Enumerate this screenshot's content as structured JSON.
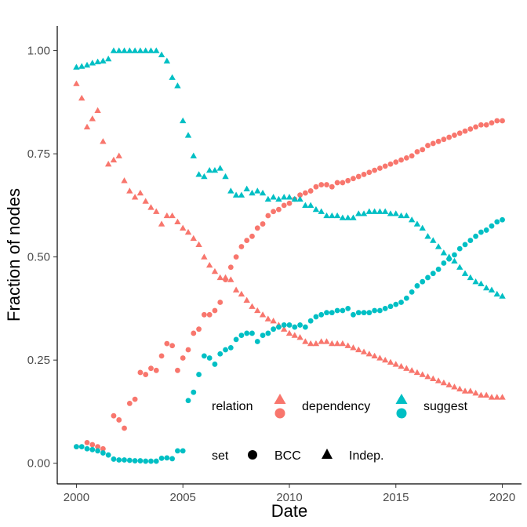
{
  "chart_data": {
    "type": "scatter",
    "xlabel": "Date",
    "ylabel": "Fraction of nodes",
    "xlim": [
      1999.1,
      2020.9
    ],
    "ylim": [
      -0.05,
      1.06
    ],
    "xticks": [
      2000,
      2005,
      2010,
      2015,
      2020
    ],
    "xtick_labels": [
      "2000",
      "2005",
      "2010",
      "2015",
      "2020"
    ],
    "yticks": [
      0.0,
      0.25,
      0.5,
      0.75,
      1.0
    ],
    "ytick_labels": [
      "0.00",
      "0.25",
      "0.50",
      "0.75",
      "1.00"
    ],
    "grid": false,
    "legend_placement": "bottom-right inside plot",
    "legend": {
      "relation_title": "relation",
      "relation_items": [
        "dependency",
        "suggest"
      ],
      "set_title": "set",
      "set_items": [
        "BCC",
        "Indep."
      ]
    },
    "colors": {
      "dependency": "#F8766D",
      "suggest": "#00BFC4",
      "axis": "#000000",
      "tick_text": "#4d4d4d"
    },
    "series": [
      {
        "name": "dependency / BCC",
        "relation": "dependency",
        "set": "BCC",
        "shape": "circle",
        "x": [
          2000.0,
          2000.5,
          2000.75,
          2001.0,
          2001.25,
          2001.75,
          2002.0,
          2002.25,
          2002.5,
          2002.75,
          2003.0,
          2003.25,
          2003.5,
          2003.75,
          2004.0,
          2004.25,
          2004.5,
          2004.75,
          2005.0,
          2005.25,
          2005.5,
          2005.75,
          2006.0,
          2006.25,
          2006.5,
          2006.75,
          2007.0,
          2007.25,
          2007.5,
          2007.75,
          2008.0,
          2008.25,
          2008.5,
          2008.75,
          2009.0,
          2009.25,
          2009.5,
          2009.75,
          2010.0,
          2010.25,
          2010.5,
          2010.75,
          2011.0,
          2011.25,
          2011.5,
          2011.75,
          2012.0,
          2012.25,
          2012.5,
          2012.75,
          2013.0,
          2013.25,
          2013.5,
          2013.75,
          2014.0,
          2014.25,
          2014.5,
          2014.75,
          2015.0,
          2015.25,
          2015.5,
          2015.75,
          2016.0,
          2016.25,
          2016.5,
          2016.75,
          2017.0,
          2017.25,
          2017.5,
          2017.75,
          2018.0,
          2018.25,
          2018.5,
          2018.75,
          2019.0,
          2019.25,
          2019.5,
          2019.75,
          2020.0
        ],
        "y": [
          0.04,
          0.05,
          0.045,
          0.04,
          0.035,
          0.115,
          0.105,
          0.085,
          0.145,
          0.155,
          0.22,
          0.215,
          0.23,
          0.225,
          0.26,
          0.29,
          0.285,
          0.225,
          0.255,
          0.275,
          0.315,
          0.325,
          0.36,
          0.36,
          0.37,
          0.39,
          0.445,
          0.475,
          0.5,
          0.525,
          0.54,
          0.55,
          0.57,
          0.58,
          0.6,
          0.61,
          0.615,
          0.625,
          0.63,
          0.64,
          0.65,
          0.655,
          0.66,
          0.67,
          0.675,
          0.675,
          0.67,
          0.68,
          0.68,
          0.685,
          0.69,
          0.695,
          0.7,
          0.705,
          0.71,
          0.715,
          0.72,
          0.725,
          0.73,
          0.735,
          0.74,
          0.745,
          0.755,
          0.76,
          0.77,
          0.775,
          0.78,
          0.785,
          0.79,
          0.795,
          0.8,
          0.805,
          0.81,
          0.815,
          0.82,
          0.82,
          0.825,
          0.83,
          0.83
        ]
      },
      {
        "name": "dependency / Indep.",
        "relation": "dependency",
        "set": "Indep.",
        "shape": "triangle",
        "x": [
          2000.0,
          2000.25,
          2000.5,
          2000.75,
          2001.0,
          2001.25,
          2001.5,
          2001.75,
          2002.0,
          2002.25,
          2002.5,
          2002.75,
          2003.0,
          2003.25,
          2003.5,
          2003.75,
          2004.0,
          2004.25,
          2004.5,
          2004.75,
          2005.0,
          2005.25,
          2005.5,
          2005.75,
          2006.0,
          2006.25,
          2006.5,
          2006.75,
          2007.0,
          2007.25,
          2007.5,
          2007.75,
          2008.0,
          2008.25,
          2008.5,
          2008.75,
          2009.0,
          2009.25,
          2009.5,
          2009.75,
          2010.0,
          2010.25,
          2010.5,
          2010.75,
          2011.0,
          2011.25,
          2011.5,
          2011.75,
          2012.0,
          2012.25,
          2012.5,
          2012.75,
          2013.0,
          2013.25,
          2013.5,
          2013.75,
          2014.0,
          2014.25,
          2014.5,
          2014.75,
          2015.0,
          2015.25,
          2015.5,
          2015.75,
          2016.0,
          2016.25,
          2016.5,
          2016.75,
          2017.0,
          2017.25,
          2017.5,
          2017.75,
          2018.0,
          2018.25,
          2018.5,
          2018.75,
          2019.0,
          2019.25,
          2019.5,
          2019.75,
          2020.0
        ],
        "y": [
          0.92,
          0.885,
          0.815,
          0.835,
          0.855,
          0.78,
          0.725,
          0.735,
          0.745,
          0.685,
          0.66,
          0.645,
          0.655,
          0.635,
          0.62,
          0.61,
          0.58,
          0.6,
          0.6,
          0.585,
          0.57,
          0.56,
          0.545,
          0.53,
          0.5,
          0.48,
          0.465,
          0.45,
          0.45,
          0.445,
          0.42,
          0.41,
          0.395,
          0.38,
          0.37,
          0.36,
          0.35,
          0.345,
          0.335,
          0.325,
          0.315,
          0.31,
          0.305,
          0.295,
          0.29,
          0.29,
          0.295,
          0.295,
          0.29,
          0.29,
          0.29,
          0.285,
          0.28,
          0.275,
          0.27,
          0.265,
          0.26,
          0.255,
          0.25,
          0.245,
          0.24,
          0.235,
          0.23,
          0.225,
          0.22,
          0.215,
          0.21,
          0.205,
          0.2,
          0.195,
          0.19,
          0.185,
          0.18,
          0.175,
          0.175,
          0.17,
          0.165,
          0.165,
          0.16,
          0.16,
          0.16
        ]
      },
      {
        "name": "suggest / BCC",
        "relation": "suggest",
        "set": "BCC",
        "shape": "circle",
        "x": [
          2000.0,
          2000.25,
          2000.5,
          2000.75,
          2001.0,
          2001.25,
          2001.5,
          2001.75,
          2002.0,
          2002.25,
          2002.5,
          2002.75,
          2003.0,
          2003.25,
          2003.5,
          2003.75,
          2004.0,
          2004.25,
          2004.5,
          2004.75,
          2005.0,
          2005.25,
          2005.5,
          2005.75,
          2006.0,
          2006.25,
          2006.5,
          2006.75,
          2007.0,
          2007.25,
          2007.5,
          2007.75,
          2008.0,
          2008.25,
          2008.5,
          2008.75,
          2009.0,
          2009.25,
          2009.5,
          2009.75,
          2010.0,
          2010.25,
          2010.5,
          2010.75,
          2011.0,
          2011.25,
          2011.5,
          2011.75,
          2012.0,
          2012.25,
          2012.5,
          2012.75,
          2013.0,
          2013.25,
          2013.5,
          2013.75,
          2014.0,
          2014.25,
          2014.5,
          2014.75,
          2015.0,
          2015.25,
          2015.5,
          2015.75,
          2016.0,
          2016.25,
          2016.5,
          2016.75,
          2017.0,
          2017.25,
          2017.5,
          2017.75,
          2018.0,
          2018.25,
          2018.5,
          2018.75,
          2019.0,
          2019.25,
          2019.5,
          2019.75,
          2020.0
        ],
        "y": [
          0.04,
          0.04,
          0.035,
          0.033,
          0.03,
          0.025,
          0.02,
          0.01,
          0.008,
          0.008,
          0.007,
          0.006,
          0.006,
          0.005,
          0.005,
          0.005,
          0.012,
          0.013,
          0.011,
          0.03,
          0.03,
          0.152,
          0.172,
          0.215,
          0.26,
          0.255,
          0.24,
          0.265,
          0.275,
          0.28,
          0.3,
          0.31,
          0.315,
          0.315,
          0.295,
          0.31,
          0.315,
          0.325,
          0.33,
          0.335,
          0.335,
          0.33,
          0.335,
          0.33,
          0.345,
          0.355,
          0.36,
          0.365,
          0.365,
          0.37,
          0.37,
          0.375,
          0.36,
          0.365,
          0.365,
          0.365,
          0.37,
          0.37,
          0.375,
          0.38,
          0.385,
          0.39,
          0.4,
          0.415,
          0.43,
          0.44,
          0.45,
          0.46,
          0.47,
          0.485,
          0.495,
          0.505,
          0.52,
          0.53,
          0.54,
          0.55,
          0.56,
          0.565,
          0.575,
          0.585,
          0.59
        ]
      },
      {
        "name": "suggest / Indep.",
        "relation": "suggest",
        "set": "Indep.",
        "shape": "triangle",
        "x": [
          2000.0,
          2000.25,
          2000.5,
          2000.75,
          2001.0,
          2001.25,
          2001.5,
          2001.75,
          2002.0,
          2002.25,
          2002.5,
          2002.75,
          2003.0,
          2003.25,
          2003.5,
          2003.75,
          2004.0,
          2004.25,
          2004.5,
          2004.75,
          2005.0,
          2005.25,
          2005.5,
          2005.75,
          2006.0,
          2006.25,
          2006.5,
          2006.75,
          2007.0,
          2007.25,
          2007.5,
          2007.75,
          2008.0,
          2008.25,
          2008.5,
          2008.75,
          2009.0,
          2009.25,
          2009.5,
          2009.75,
          2010.0,
          2010.25,
          2010.5,
          2010.75,
          2011.0,
          2011.25,
          2011.5,
          2011.75,
          2012.0,
          2012.25,
          2012.5,
          2012.75,
          2013.0,
          2013.25,
          2013.5,
          2013.75,
          2014.0,
          2014.25,
          2014.5,
          2014.75,
          2015.0,
          2015.25,
          2015.5,
          2015.75,
          2016.0,
          2016.25,
          2016.5,
          2016.75,
          2017.0,
          2017.25,
          2017.5,
          2017.75,
          2018.0,
          2018.25,
          2018.5,
          2018.75,
          2019.0,
          2019.25,
          2019.5,
          2019.75,
          2020.0
        ],
        "y": [
          0.96,
          0.962,
          0.965,
          0.97,
          0.973,
          0.975,
          0.98,
          1.0,
          1.0,
          1.0,
          1.0,
          1.0,
          1.0,
          1.0,
          1.0,
          1.0,
          0.99,
          0.975,
          0.935,
          0.915,
          0.83,
          0.795,
          0.745,
          0.7,
          0.695,
          0.71,
          0.71,
          0.715,
          0.695,
          0.66,
          0.65,
          0.65,
          0.665,
          0.655,
          0.66,
          0.655,
          0.64,
          0.645,
          0.64,
          0.645,
          0.645,
          0.64,
          0.64,
          0.625,
          0.625,
          0.615,
          0.61,
          0.6,
          0.6,
          0.6,
          0.595,
          0.595,
          0.595,
          0.605,
          0.605,
          0.61,
          0.61,
          0.61,
          0.61,
          0.605,
          0.605,
          0.6,
          0.6,
          0.59,
          0.58,
          0.57,
          0.55,
          0.54,
          0.525,
          0.51,
          0.5,
          0.49,
          0.475,
          0.46,
          0.45,
          0.44,
          0.435,
          0.425,
          0.42,
          0.41,
          0.405
        ]
      }
    ]
  }
}
